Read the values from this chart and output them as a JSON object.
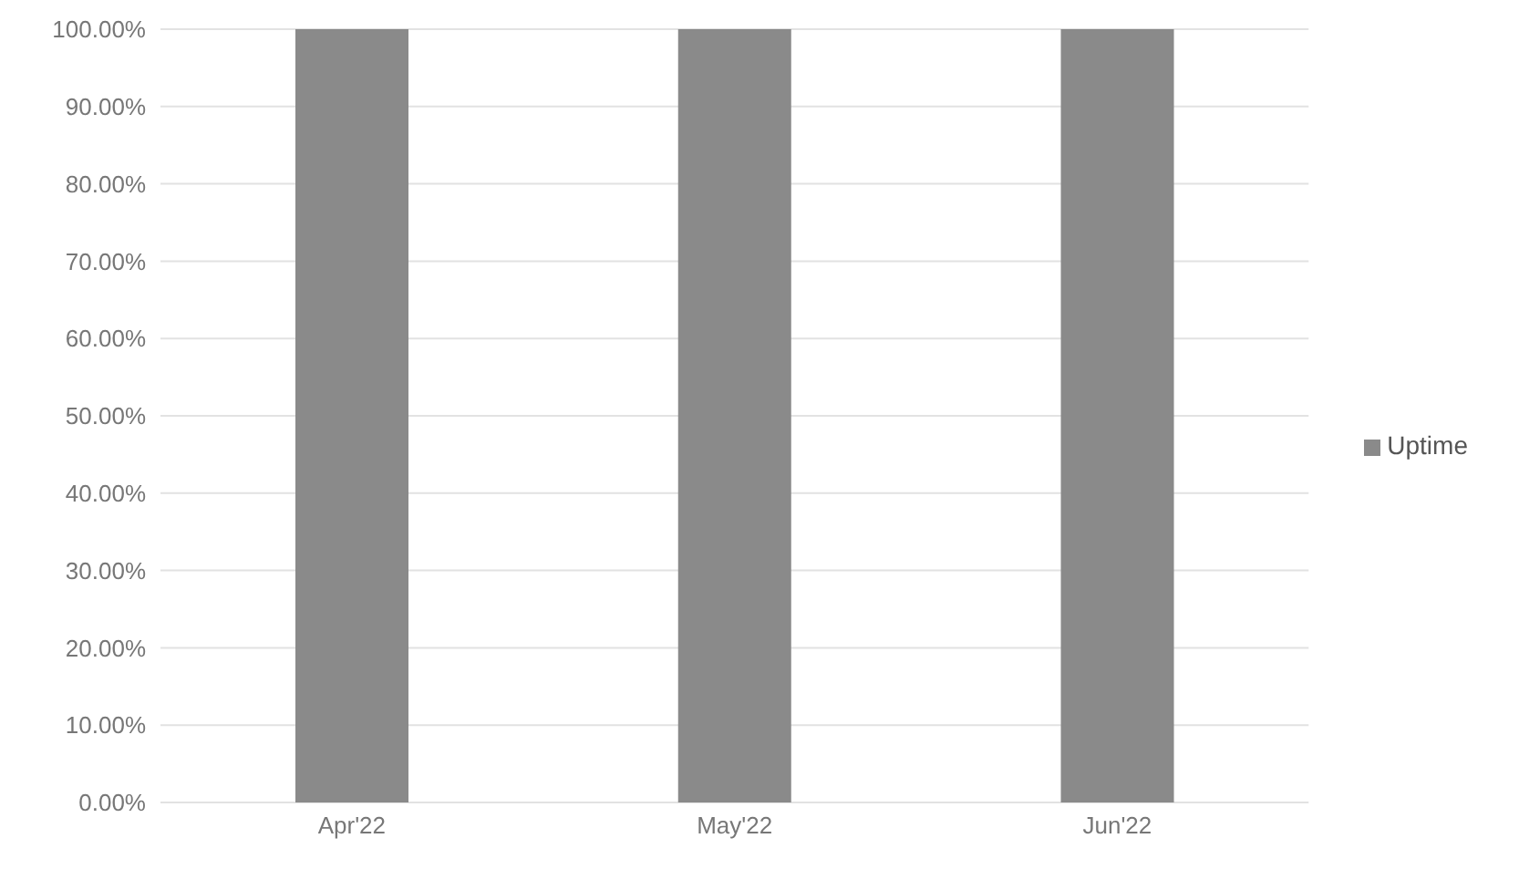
{
  "chart_data": {
    "type": "bar",
    "categories": [
      "Apr'22",
      "May'22",
      "Jun'22"
    ],
    "series": [
      {
        "name": "Uptime",
        "color": "#8a8a8a",
        "values": [
          100,
          100,
          100
        ]
      }
    ],
    "ylim": [
      0,
      100
    ],
    "yticks": [
      {
        "value": 0,
        "label": "0.00%"
      },
      {
        "value": 10,
        "label": "10.00%"
      },
      {
        "value": 20,
        "label": "20.00%"
      },
      {
        "value": 30,
        "label": "30.00%"
      },
      {
        "value": 40,
        "label": "40.00%"
      },
      {
        "value": 50,
        "label": "50.00%"
      },
      {
        "value": 60,
        "label": "60.00%"
      },
      {
        "value": 70,
        "label": "70.00%"
      },
      {
        "value": 80,
        "label": "80.00%"
      },
      {
        "value": 90,
        "label": "90.00%"
      },
      {
        "value": 100,
        "label": "100.00%"
      }
    ],
    "grid": "y",
    "legend": "right"
  }
}
